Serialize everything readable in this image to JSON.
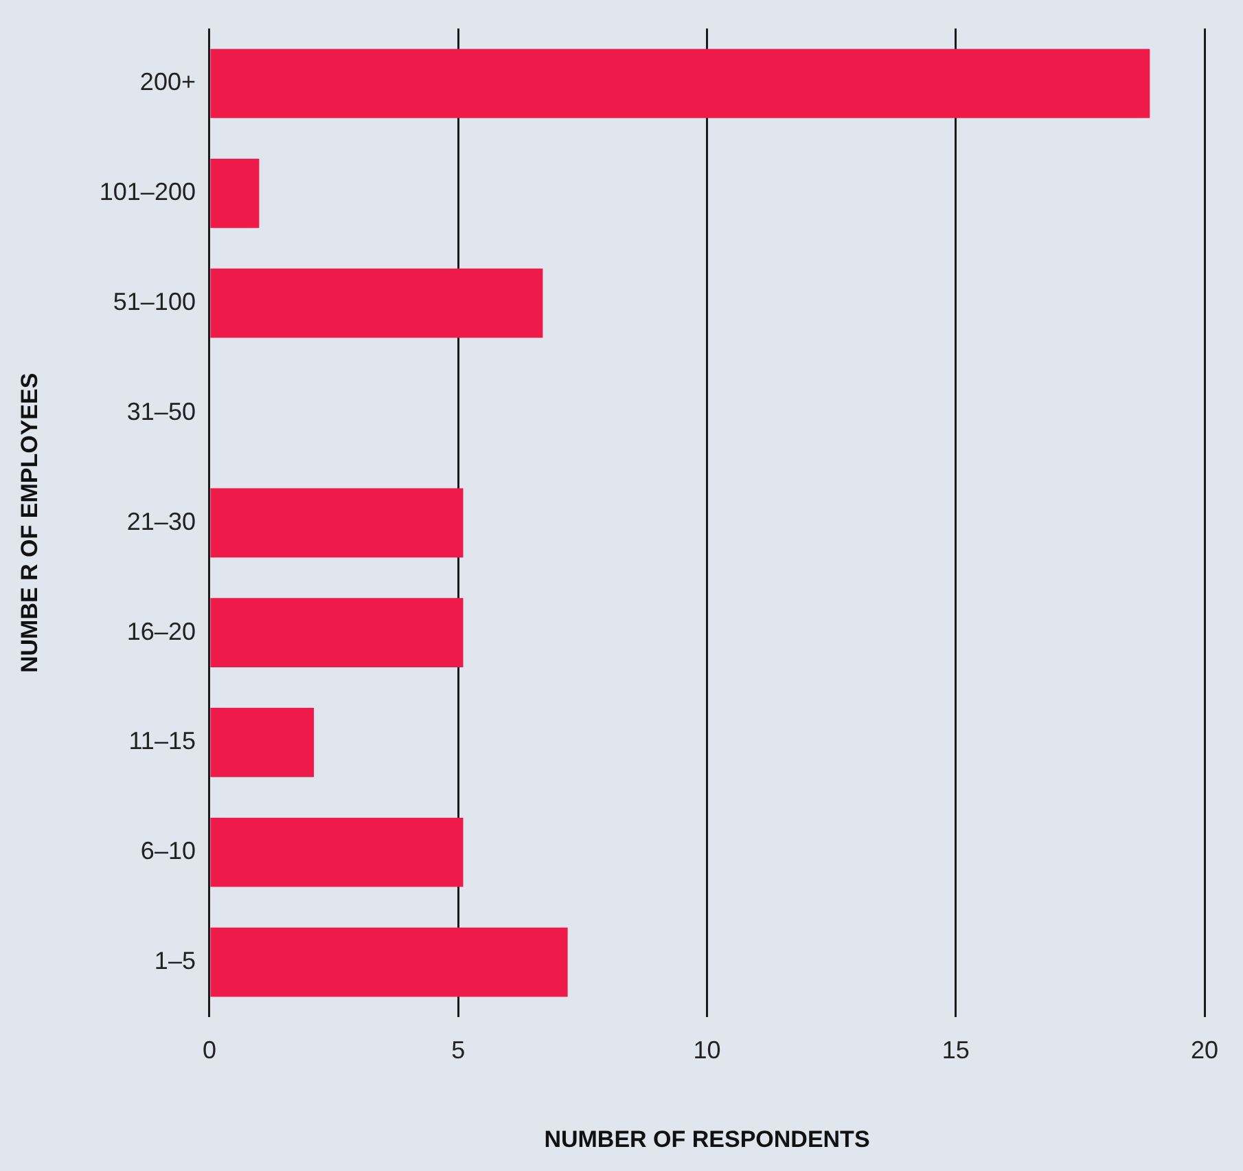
{
  "chart_data": {
    "type": "bar",
    "orientation": "horizontal",
    "xlabel": "NUMBER OF RESPONDENTS",
    "ylabel": "NUMBE R OF EMPLOYEES",
    "categories": [
      "200+",
      "101–200",
      "51–100",
      "31–50",
      "21–30",
      "16–20",
      "11–15",
      "6–10",
      "1–5"
    ],
    "values": [
      18.9,
      1,
      6.7,
      0,
      5.1,
      5.1,
      2.1,
      5.1,
      7.2
    ],
    "color": "#ee1a4a",
    "xlim": [
      0,
      20
    ],
    "xticks": [
      0,
      5,
      10,
      15,
      20
    ],
    "grid": "x"
  }
}
